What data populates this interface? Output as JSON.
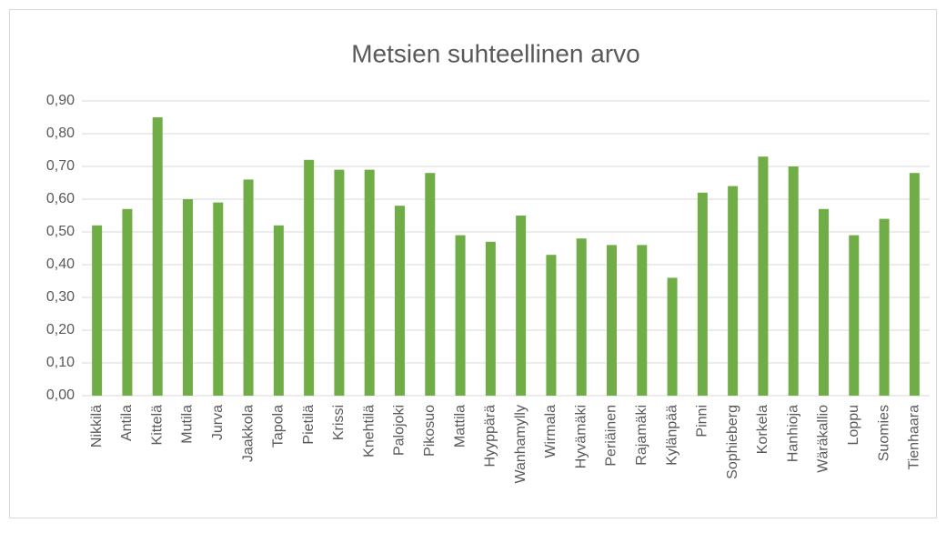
{
  "chart_data": {
    "type": "bar",
    "title": "Metsien suhteellinen arvo",
    "categories": [
      "Nikkilä",
      "Antila",
      "Kittelä",
      "Mutila",
      "Jurva",
      "Jaakkola",
      "Tapola",
      "Pietilä",
      "Krissi",
      "Knehtilä",
      "Palojoki",
      "Pikosuo",
      "Mattila",
      "Hyyppärä",
      "Wanhamylly",
      "Wirmala",
      "Hyvämäki",
      "Periäinen",
      "Rajamäki",
      "Kylänpää",
      "Pinni",
      "Sophieberg",
      "Korkela",
      "Hanhioja",
      "Wäräkallio",
      "Loppu",
      "Suomies",
      "Tienhaara"
    ],
    "values": [
      0.52,
      0.57,
      0.85,
      0.6,
      0.59,
      0.66,
      0.52,
      0.72,
      0.69,
      0.69,
      0.58,
      0.68,
      0.49,
      0.47,
      0.55,
      0.43,
      0.48,
      0.46,
      0.46,
      0.36,
      0.62,
      0.64,
      0.73,
      0.7,
      0.57,
      0.49,
      0.54,
      0.68
    ],
    "color": "#70ad47",
    "ylim": [
      0,
      0.9
    ],
    "yticks": [
      {
        "value": 0,
        "label": "0,00"
      },
      {
        "value": 0.1,
        "label": "0,10"
      },
      {
        "value": 0.2,
        "label": "0,20"
      },
      {
        "value": 0.3,
        "label": "0,30"
      },
      {
        "value": 0.4,
        "label": "0,40"
      },
      {
        "value": 0.5,
        "label": "0,50"
      },
      {
        "value": 0.6,
        "label": "0,60"
      },
      {
        "value": 0.7,
        "label": "0,70"
      },
      {
        "value": 0.8,
        "label": "0,80"
      },
      {
        "value": 0.9,
        "label": "0,90"
      }
    ],
    "grid": true
  }
}
